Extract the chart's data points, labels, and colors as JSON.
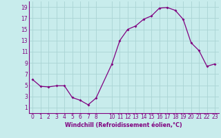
{
  "x": [
    0,
    1,
    2,
    3,
    4,
    5,
    6,
    7,
    8,
    10,
    11,
    12,
    13,
    14,
    15,
    16,
    17,
    18,
    19,
    20,
    21,
    22,
    23
  ],
  "y": [
    6.0,
    4.8,
    4.7,
    4.9,
    4.9,
    2.8,
    2.3,
    1.5,
    2.7,
    8.8,
    13.0,
    15.0,
    15.6,
    16.8,
    17.4,
    18.8,
    18.9,
    18.4,
    16.8,
    12.6,
    11.2,
    8.4,
    8.8
  ],
  "line_color": "#800080",
  "marker": "D",
  "marker_size": 2.0,
  "bg_color": "#c8ecec",
  "grid_color": "#aad4d4",
  "xlabel": "Windchill (Refroidissement éolien,°C)",
  "xlabel_color": "#800080",
  "tick_color": "#800080",
  "xlim": [
    -0.5,
    23.5
  ],
  "ylim": [
    0,
    20
  ],
  "yticks": [
    1,
    3,
    5,
    7,
    9,
    11,
    13,
    15,
    17,
    19
  ],
  "xticks": [
    0,
    1,
    2,
    3,
    4,
    5,
    6,
    7,
    8,
    10,
    11,
    12,
    13,
    14,
    15,
    16,
    17,
    18,
    19,
    20,
    21,
    22,
    23
  ],
  "tick_fontsize": 5.5,
  "xlabel_fontsize": 5.8,
  "linewidth": 0.9
}
